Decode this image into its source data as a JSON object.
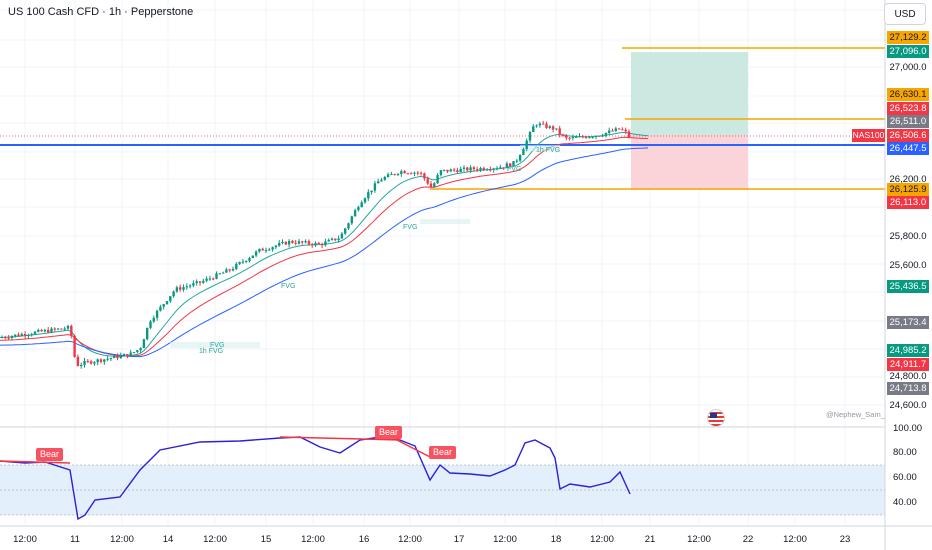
{
  "header": {
    "symbol_title": "US 100 Cash CFD · 1h · Pepperstone",
    "currency": "USD"
  },
  "price_axis": {
    "labels": [
      "27,000.0",
      "26,200.0",
      "25,800.0",
      "25,600.0",
      "24,800.0",
      "24,600.0"
    ],
    "tags": [
      {
        "text": "27,129.2",
        "bg": "#f7a600",
        "fg": "#131722"
      },
      {
        "text": "27,096.0",
        "bg": "#089981",
        "fg": "#ffffff"
      },
      {
        "text": "26,630.1",
        "bg": "#f7a600",
        "fg": "#131722"
      },
      {
        "text": "26,523.8",
        "bg": "#f23645",
        "fg": "#ffffff"
      },
      {
        "text": "26,511.0",
        "bg": "#787b86",
        "fg": "#ffffff"
      },
      {
        "text": "26,506.6",
        "bg": "#f23645",
        "fg": "#ffffff"
      },
      {
        "text": "26,447.5",
        "bg": "#2962ff",
        "fg": "#ffffff"
      },
      {
        "text": "26,125.9",
        "bg": "#f7a600",
        "fg": "#131722"
      },
      {
        "text": "26,113.0",
        "bg": "#f23645",
        "fg": "#ffffff"
      },
      {
        "text": "25,436.5",
        "bg": "#089981",
        "fg": "#ffffff"
      },
      {
        "text": "25,173.4",
        "bg": "#787b86",
        "fg": "#ffffff"
      },
      {
        "text": "24,985.2",
        "bg": "#089981",
        "fg": "#ffffff"
      },
      {
        "text": "24,911.7",
        "bg": "#f23645",
        "fg": "#ffffff"
      },
      {
        "text": "24,713.8",
        "bg": "#787b86",
        "fg": "#ffffff"
      }
    ],
    "symbol_tag": "NAS100"
  },
  "time_axis": {
    "labels": [
      "12:00",
      "11",
      "12:00",
      "14",
      "12:00",
      "15",
      "12:00",
      "16",
      "12:00",
      "17",
      "12:00",
      "18",
      "12:00",
      "21",
      "12:00",
      "22",
      "12:00",
      "23"
    ]
  },
  "rsi_axis": {
    "labels": [
      "100.00",
      "80.00",
      "60.00",
      "40.00"
    ]
  },
  "annotations": {
    "bear_labels": [
      "Bear",
      "Bear",
      "Bear"
    ],
    "fvg_labels": [
      "FVG",
      "FVG",
      "FVG",
      "FVG",
      "1h FVG",
      "1h FVG"
    ],
    "watermark": "@Nephew_Sam_"
  },
  "colors": {
    "up": "#089981",
    "down": "#f23645",
    "ema_green": "#26a69a",
    "ema_red": "#f23645",
    "ema_blue": "#2962ff",
    "level_orange": "#f7a600",
    "level_blue": "#2962ff",
    "target_zone": "#cce9e1",
    "stop_zone": "#fad4d8",
    "rsi_line": "#2b20d9",
    "rsi_band": "#e3f0fb"
  },
  "icons": {
    "region": "us-flag-icon"
  }
}
